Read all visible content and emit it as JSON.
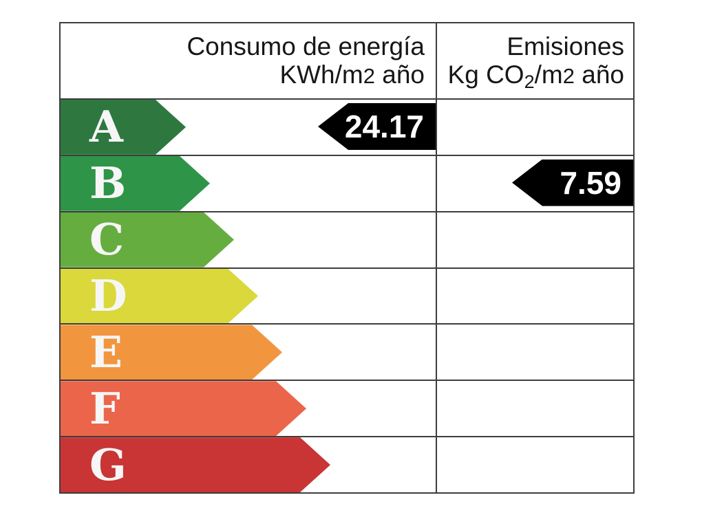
{
  "header": {
    "consumption": {
      "line1": "Consumo de energía",
      "unit_prefix": "KWh/m",
      "unit_exp": "2",
      "unit_suffix": " año"
    },
    "emissions": {
      "line1": "Emisiones",
      "unit_prefix": "Kg CO",
      "unit_sub": "2",
      "unit_mid": "/m",
      "unit_exp": "2",
      "unit_suffix": " año"
    }
  },
  "ratings": [
    {
      "letter": "A",
      "color": "#2e7840"
    },
    {
      "letter": "B",
      "color": "#2e9447"
    },
    {
      "letter": "C",
      "color": "#66ad40"
    },
    {
      "letter": "D",
      "color": "#dad83b"
    },
    {
      "letter": "E",
      "color": "#f2953f"
    },
    {
      "letter": "F",
      "color": "#eb654b"
    },
    {
      "letter": "G",
      "color": "#c93434"
    }
  ],
  "indicators": {
    "consumption": {
      "value": "24.17",
      "rating": "A",
      "color": "#000000"
    },
    "emissions": {
      "value": "7.59",
      "rating": "B",
      "color": "#000000"
    }
  },
  "line_color": "#3d3d3d",
  "chart_data": {
    "type": "bar",
    "title": "",
    "categories": [
      "A",
      "B",
      "C",
      "D",
      "E",
      "F",
      "G"
    ],
    "category_colors": [
      "#2e7840",
      "#2e9447",
      "#66ad40",
      "#dad83b",
      "#f2953f",
      "#eb654b",
      "#c93434"
    ],
    "series": [
      {
        "name": "Consumo de energía KWh/m2 año",
        "rating": "A",
        "value": 24.17
      },
      {
        "name": "Emisiones Kg CO2/m2 año",
        "rating": "B",
        "value": 7.59
      }
    ],
    "legend": "none",
    "grid": "table-lines"
  }
}
